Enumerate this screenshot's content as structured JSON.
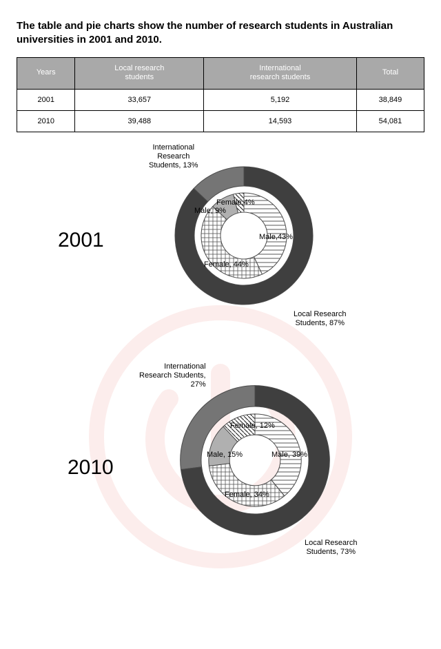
{
  "title": "The table and pie charts show the number of research students in Australian universities in 2001 and 2010.",
  "table": {
    "columns": [
      "Years",
      "Local research\nstudents",
      "International\nresearch students",
      "Total"
    ],
    "rows": [
      [
        "2001",
        "33,657",
        "5,192",
        "38,849"
      ],
      [
        "2010",
        "39,488",
        "14,593",
        "54,081"
      ]
    ],
    "header_bg": "#a9a9a9",
    "header_color": "#ffffff",
    "border_color": "#000000"
  },
  "colors": {
    "outer_local": "#3f3f3f",
    "outer_intl": "#757575",
    "inner_local_male": "#e8e8e8",
    "inner_local_female": "#d8d8d8",
    "inner_intl_male": "#b0b0b0",
    "inner_intl_female": "#c8c8c8",
    "stroke": "#4a4a4a",
    "watermark": "#e85a4f"
  },
  "charts": {
    "2001": {
      "year": "2001",
      "outer": {
        "international": 13,
        "local": 87
      },
      "inner": {
        "intl_female": 4,
        "intl_male": 9,
        "local_female": 44,
        "local_male": 43
      },
      "labels": {
        "outer_intl": "International\nResearch\nStudents, 13%",
        "outer_local": "Local Research\nStudents, 87%",
        "intl_female": "Female,4%",
        "intl_male": "Male, 9%",
        "local_female": "Female, 44%",
        "local_male": "Male,43%"
      }
    },
    "2010": {
      "year": "2010",
      "outer": {
        "international": 27,
        "local": 73
      },
      "inner": {
        "intl_female": 12,
        "intl_male": 15,
        "local_female": 34,
        "local_male": 39
      },
      "labels": {
        "outer_intl": "International\nResearch Students,\n27%",
        "outer_local": "Local Research\nStudents, 73%",
        "intl_female": "Female, 12%",
        "intl_male": "Male, 15%",
        "local_female": "Female, 34%",
        "local_male": "Male, 39%"
      }
    }
  },
  "geometry": {
    "outer_r1": 100,
    "outer_r2": 72,
    "inner_r1": 62,
    "inner_r2": 34
  }
}
